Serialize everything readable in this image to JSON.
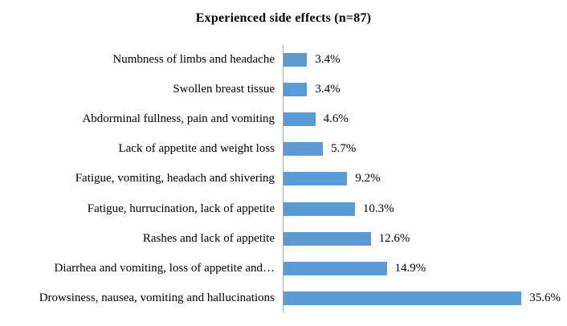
{
  "title": "Experienced side effects (n=87)",
  "colors": {
    "bar": "#5B9BD5",
    "axis": "#a6a6a6",
    "text": "#000000",
    "background": "#ffffff"
  },
  "chart_data": {
    "type": "bar",
    "orientation": "horizontal",
    "title": "Experienced side effects (n=87)",
    "categories": [
      "Numbness of limbs and headache",
      "Swollen breast tissue",
      "Abdorminal fullness, pain and vomiting",
      "Lack of appetite and weight loss",
      "Fatigue, vomiting, headach and shivering",
      "Fatigue, hurrucination,  lack of appetite",
      "Rashes and lack of appetite",
      "Diarrhea and vomiting, loss of appetite and…",
      "Drowsiness, nausea, vomiting and hallucinations"
    ],
    "values": [
      3.4,
      3.4,
      4.6,
      5.7,
      9.2,
      10.3,
      12.6,
      14.9,
      35.6
    ],
    "value_labels": [
      "3.4%",
      "3.4%",
      "4.6%",
      "5.7%",
      "9.2%",
      "10.3%",
      "12.6%",
      "14.9%",
      "35.6%"
    ],
    "xlabel": "",
    "ylabel": "",
    "xlim": [
      0,
      40
    ],
    "grid": false,
    "legend": false,
    "data_labels": true
  }
}
